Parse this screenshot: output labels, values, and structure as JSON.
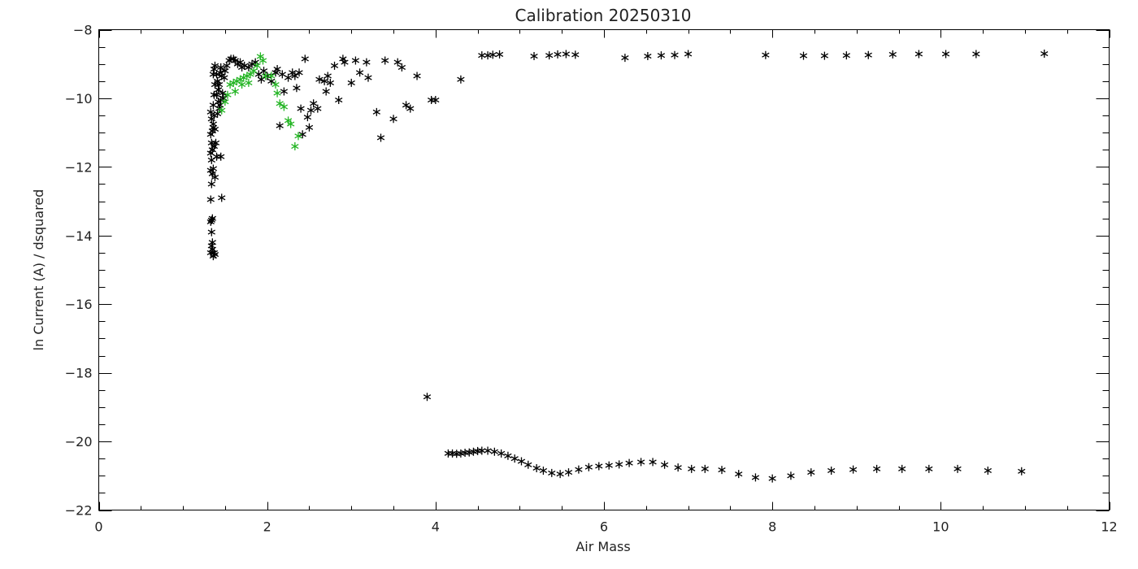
{
  "chart_data": {
    "type": "scatter",
    "title": "Calibration 20250310",
    "xlabel": "Air Mass",
    "ylabel": "ln Current (A) / dsquared",
    "xlim": [
      0,
      12
    ],
    "ylim": [
      -22,
      -8
    ],
    "x_ticks": [
      0,
      2,
      4,
      6,
      8,
      10,
      12
    ],
    "y_ticks": [
      -22,
      -20,
      -18,
      -16,
      -14,
      -12,
      -10,
      -8
    ],
    "x_tick_labels": [
      "0",
      "2",
      "4",
      "6",
      "8",
      "10",
      "12"
    ],
    "y_tick_labels": [
      "−22",
      "−20",
      "−18",
      "−16",
      "−14",
      "−12",
      "−10",
      "−8"
    ],
    "x_minor_step": 0.5,
    "y_minor_step": 0.5,
    "grid": false,
    "legend": "none",
    "marker": "asterisk",
    "series": [
      {
        "color": "#000000",
        "points": [
          [
            1.33,
            -14.5
          ],
          [
            1.34,
            -14.3
          ],
          [
            1.35,
            -14.4
          ],
          [
            1.36,
            -14.6
          ],
          [
            1.37,
            -14.5
          ],
          [
            1.38,
            -14.55
          ],
          [
            1.35,
            -14.2
          ],
          [
            1.34,
            -13.9
          ],
          [
            1.33,
            -13.6
          ],
          [
            1.34,
            -13.55
          ],
          [
            1.35,
            -13.5
          ],
          [
            1.33,
            -12.95
          ],
          [
            1.34,
            -12.5
          ],
          [
            1.35,
            -12.2
          ],
          [
            1.36,
            -12.05
          ],
          [
            1.33,
            -12.1
          ],
          [
            1.34,
            -11.8
          ],
          [
            1.33,
            -11.6
          ],
          [
            1.35,
            -11.5
          ],
          [
            1.34,
            -11.3
          ],
          [
            1.33,
            -11.05
          ],
          [
            1.35,
            -10.95
          ],
          [
            1.36,
            -10.85
          ],
          [
            1.34,
            -10.6
          ],
          [
            1.33,
            -10.4
          ],
          [
            1.37,
            -10.5
          ],
          [
            1.38,
            -10.9
          ],
          [
            1.39,
            -11.3
          ],
          [
            1.4,
            -11.7
          ],
          [
            1.38,
            -12.3
          ],
          [
            1.37,
            -11.4
          ],
          [
            1.36,
            -10.75
          ],
          [
            1.36,
            -10.2
          ],
          [
            1.37,
            -9.9
          ],
          [
            1.38,
            -9.6
          ],
          [
            1.36,
            -9.3
          ],
          [
            1.37,
            -9.15
          ],
          [
            1.38,
            -9.05
          ],
          [
            1.4,
            -9.3
          ],
          [
            1.41,
            -9.5
          ],
          [
            1.42,
            -9.75
          ],
          [
            1.4,
            -9.9
          ],
          [
            1.42,
            -10.1
          ],
          [
            1.43,
            -10.3
          ],
          [
            1.41,
            -10.45
          ],
          [
            1.43,
            -9.6
          ],
          [
            1.44,
            -9.25
          ],
          [
            1.45,
            -9.1
          ],
          [
            1.46,
            -9.35
          ],
          [
            1.47,
            -9.85
          ],
          [
            1.45,
            -10.05
          ],
          [
            1.44,
            -10.2
          ],
          [
            1.48,
            -10.0
          ],
          [
            1.49,
            -9.4
          ],
          [
            1.5,
            -9.2
          ],
          [
            1.52,
            -9.05
          ],
          [
            1.45,
            -11.7
          ],
          [
            1.46,
            -12.9
          ],
          [
            1.55,
            -8.9
          ],
          [
            1.57,
            -8.85
          ],
          [
            1.6,
            -8.85
          ],
          [
            1.62,
            -8.9
          ],
          [
            1.65,
            -9.0
          ],
          [
            1.68,
            -8.95
          ],
          [
            1.7,
            -9.1
          ],
          [
            1.73,
            -9.05
          ],
          [
            1.78,
            -9.1
          ],
          [
            1.82,
            -9.0
          ],
          [
            1.86,
            -8.95
          ],
          [
            1.9,
            -9.3
          ],
          [
            1.93,
            -9.45
          ],
          [
            1.96,
            -9.2
          ],
          [
            2.0,
            -9.35
          ],
          [
            2.05,
            -9.5
          ],
          [
            2.1,
            -9.25
          ],
          [
            2.12,
            -9.15
          ],
          [
            2.15,
            -10.8
          ],
          [
            2.18,
            -9.3
          ],
          [
            2.2,
            -9.8
          ],
          [
            2.25,
            -9.4
          ],
          [
            2.3,
            -9.25
          ],
          [
            2.33,
            -9.35
          ],
          [
            2.35,
            -9.7
          ],
          [
            2.38,
            -9.25
          ],
          [
            2.4,
            -10.3
          ],
          [
            2.42,
            -11.05
          ],
          [
            2.45,
            -8.85
          ],
          [
            2.48,
            -10.55
          ],
          [
            2.5,
            -10.85
          ],
          [
            2.52,
            -10.35
          ],
          [
            2.55,
            -10.15
          ],
          [
            2.6,
            -10.3
          ],
          [
            2.62,
            -9.45
          ],
          [
            2.68,
            -9.5
          ],
          [
            2.7,
            -9.8
          ],
          [
            2.72,
            -9.35
          ],
          [
            2.75,
            -9.55
          ],
          [
            2.8,
            -9.05
          ],
          [
            2.85,
            -10.05
          ],
          [
            2.9,
            -8.85
          ],
          [
            2.92,
            -8.95
          ],
          [
            3.0,
            -9.55
          ],
          [
            3.05,
            -8.9
          ],
          [
            3.1,
            -9.25
          ],
          [
            3.18,
            -8.95
          ],
          [
            3.2,
            -9.4
          ],
          [
            3.3,
            -10.4
          ],
          [
            3.35,
            -11.15
          ],
          [
            3.4,
            -8.9
          ],
          [
            3.5,
            -10.6
          ],
          [
            3.55,
            -8.95
          ],
          [
            3.6,
            -9.1
          ],
          [
            3.65,
            -10.2
          ],
          [
            3.7,
            -10.3
          ],
          [
            3.78,
            -9.35
          ],
          [
            3.95,
            -10.05
          ],
          [
            4.0,
            -10.05
          ],
          [
            4.3,
            -9.45
          ],
          [
            3.9,
            -18.7
          ],
          [
            4.55,
            -8.75
          ],
          [
            4.62,
            -8.75
          ],
          [
            4.68,
            -8.73
          ],
          [
            4.76,
            -8.72
          ],
          [
            5.17,
            -8.77
          ],
          [
            5.35,
            -8.75
          ],
          [
            5.45,
            -8.72
          ],
          [
            5.55,
            -8.71
          ],
          [
            5.66,
            -8.73
          ],
          [
            6.25,
            -8.82
          ],
          [
            6.52,
            -8.77
          ],
          [
            6.68,
            -8.75
          ],
          [
            6.84,
            -8.74
          ],
          [
            7.0,
            -8.71
          ],
          [
            7.92,
            -8.74
          ],
          [
            8.37,
            -8.76
          ],
          [
            8.62,
            -8.76
          ],
          [
            8.88,
            -8.75
          ],
          [
            9.14,
            -8.74
          ],
          [
            9.43,
            -8.72
          ],
          [
            9.74,
            -8.71
          ],
          [
            10.06,
            -8.71
          ],
          [
            10.42,
            -8.71
          ],
          [
            11.23,
            -8.7
          ],
          [
            4.15,
            -20.35
          ],
          [
            4.2,
            -20.35
          ],
          [
            4.25,
            -20.36
          ],
          [
            4.3,
            -20.35
          ],
          [
            4.35,
            -20.33
          ],
          [
            4.4,
            -20.32
          ],
          [
            4.45,
            -20.3
          ],
          [
            4.5,
            -20.28
          ],
          [
            4.55,
            -20.27
          ],
          [
            4.62,
            -20.27
          ],
          [
            4.7,
            -20.3
          ],
          [
            4.78,
            -20.35
          ],
          [
            4.86,
            -20.42
          ],
          [
            4.94,
            -20.5
          ],
          [
            5.02,
            -20.58
          ],
          [
            5.1,
            -20.68
          ],
          [
            5.2,
            -20.78
          ],
          [
            5.28,
            -20.85
          ],
          [
            5.38,
            -20.92
          ],
          [
            5.48,
            -20.95
          ],
          [
            5.58,
            -20.9
          ],
          [
            5.7,
            -20.82
          ],
          [
            5.82,
            -20.75
          ],
          [
            5.94,
            -20.72
          ],
          [
            6.06,
            -20.7
          ],
          [
            6.18,
            -20.67
          ],
          [
            6.3,
            -20.63
          ],
          [
            6.44,
            -20.6
          ],
          [
            6.58,
            -20.6
          ],
          [
            6.72,
            -20.68
          ],
          [
            6.88,
            -20.76
          ],
          [
            7.04,
            -20.8
          ],
          [
            7.2,
            -20.8
          ],
          [
            7.4,
            -20.83
          ],
          [
            7.6,
            -20.95
          ],
          [
            7.8,
            -21.05
          ],
          [
            8.0,
            -21.08
          ],
          [
            8.22,
            -21.0
          ],
          [
            8.46,
            -20.9
          ],
          [
            8.7,
            -20.85
          ],
          [
            8.96,
            -20.82
          ],
          [
            9.24,
            -20.8
          ],
          [
            9.54,
            -20.8
          ],
          [
            9.86,
            -20.8
          ],
          [
            10.2,
            -20.8
          ],
          [
            10.56,
            -20.85
          ],
          [
            10.96,
            -20.87
          ]
        ]
      },
      {
        "color": "#22b422",
        "points": [
          [
            1.46,
            -10.35
          ],
          [
            1.5,
            -10.1
          ],
          [
            1.53,
            -9.9
          ],
          [
            1.56,
            -9.6
          ],
          [
            1.6,
            -9.55
          ],
          [
            1.64,
            -9.5
          ],
          [
            1.68,
            -9.45
          ],
          [
            1.72,
            -9.4
          ],
          [
            1.76,
            -9.35
          ],
          [
            1.8,
            -9.3
          ],
          [
            1.84,
            -9.2
          ],
          [
            1.88,
            -9.05
          ],
          [
            1.92,
            -8.78
          ],
          [
            1.95,
            -8.9
          ],
          [
            1.98,
            -9.35
          ],
          [
            2.05,
            -9.35
          ],
          [
            2.1,
            -9.6
          ],
          [
            2.12,
            -9.85
          ],
          [
            2.15,
            -10.15
          ],
          [
            2.2,
            -10.25
          ],
          [
            2.25,
            -10.65
          ],
          [
            2.28,
            -10.75
          ],
          [
            2.33,
            -11.4
          ],
          [
            2.37,
            -11.1
          ],
          [
            1.62,
            -9.8
          ],
          [
            1.7,
            -9.6
          ],
          [
            1.78,
            -9.55
          ]
        ]
      }
    ]
  }
}
